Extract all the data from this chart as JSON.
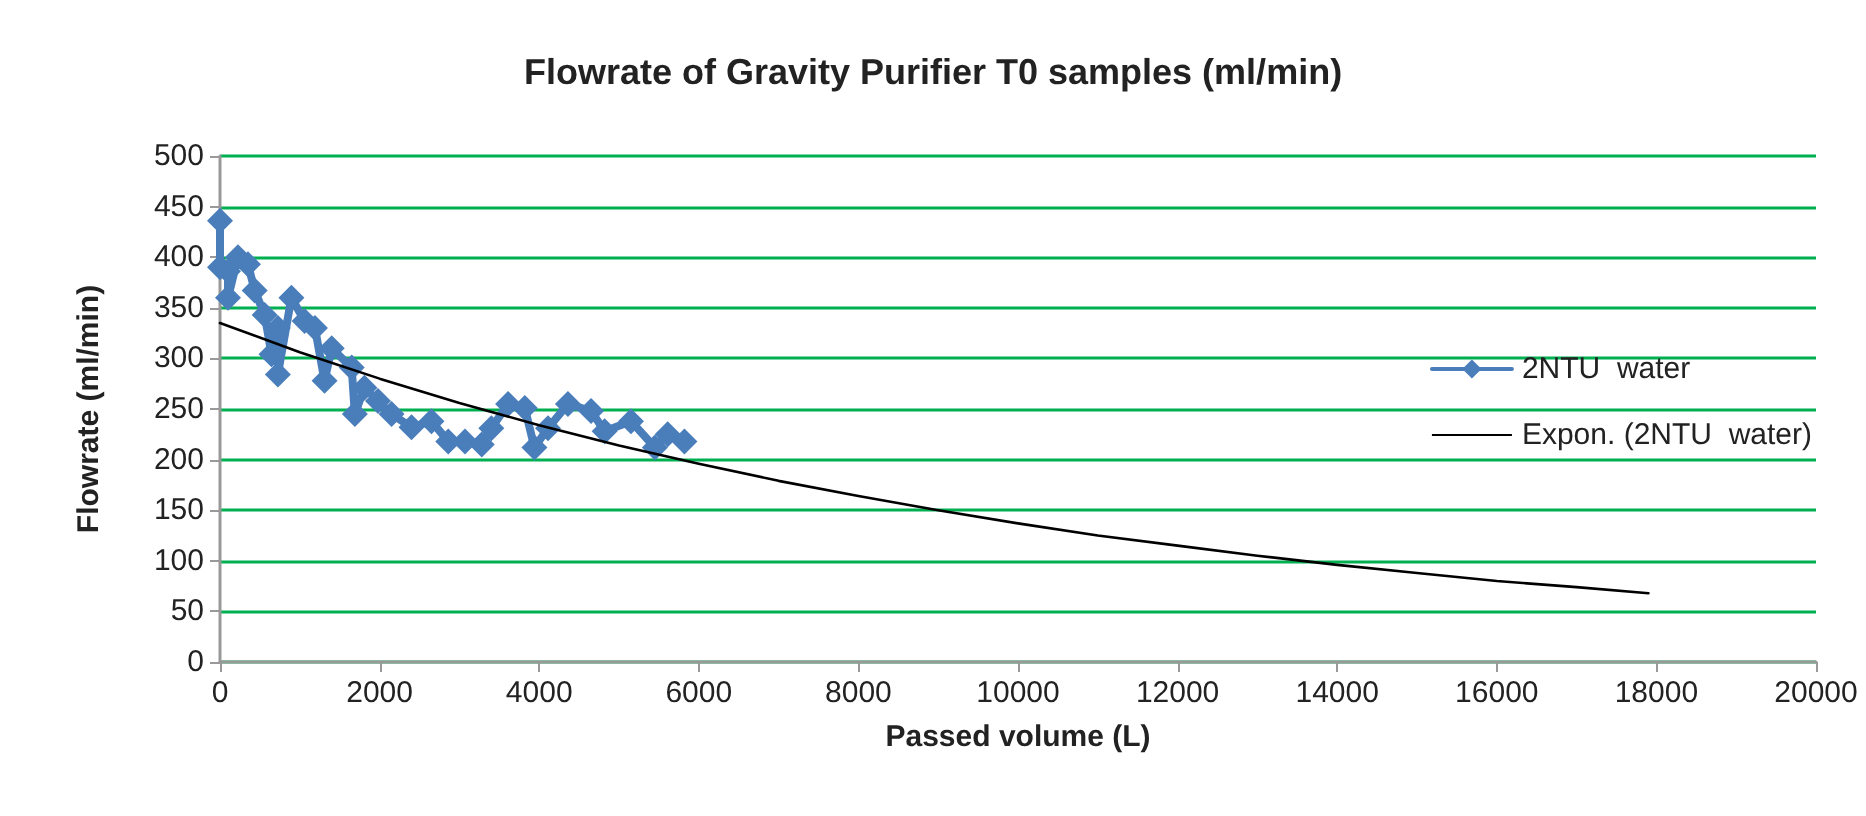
{
  "chart_data": {
    "type": "line",
    "title": "Flowrate of Gravity Purifier T0 samples (ml/min)",
    "xlabel": "Passed volume (L)",
    "ylabel": "Flowrate (ml/min)",
    "xlim": [
      0,
      20000
    ],
    "xticks": [
      0,
      2000,
      4000,
      6000,
      8000,
      10000,
      12000,
      14000,
      16000,
      18000,
      20000
    ],
    "ylim": [
      0,
      500
    ],
    "yticks": [
      0,
      50,
      100,
      150,
      200,
      250,
      300,
      350,
      400,
      450,
      500
    ],
    "grid": "y",
    "legend": "right",
    "line_style": "solid",
    "series": [
      {
        "name": "2NTU  water",
        "color": "#4a7ebb",
        "marker": "diamond",
        "x": [
          0,
          0,
          100,
          100,
          225,
          350,
          435,
          560,
          645,
          725,
          725,
          895,
          1060,
          1190,
          1310,
          1400,
          1650,
          1690,
          1810,
          1980,
          2150,
          2400,
          2650,
          2860,
          3070,
          3280,
          3400,
          3610,
          3820,
          3940,
          4110,
          4360,
          4650,
          4820,
          5150,
          5450,
          5610,
          5820
        ],
        "values": [
          436,
          390,
          386,
          360,
          400,
          393,
          367,
          343,
          304,
          330,
          284,
          360,
          337,
          330,
          278,
          310,
          291,
          245,
          271,
          258,
          245,
          232,
          238,
          218,
          218,
          215,
          231,
          255,
          251,
          212,
          231,
          255,
          248,
          228,
          238,
          212,
          225,
          218
        ]
      },
      {
        "name": "Expon. (2NTU  water)",
        "color": "#000000",
        "marker": "none",
        "x": [
          0,
          1000,
          2000,
          3000,
          4000,
          5000,
          6000,
          7000,
          8000,
          9000,
          10000,
          11000,
          12000,
          13000,
          14000,
          15000,
          16000,
          17000,
          17900
        ],
        "values": [
          335,
          306,
          280,
          256,
          234,
          214,
          196,
          179,
          164,
          150,
          137,
          125,
          115,
          105,
          96,
          88,
          80,
          74,
          68
        ]
      }
    ]
  }
}
